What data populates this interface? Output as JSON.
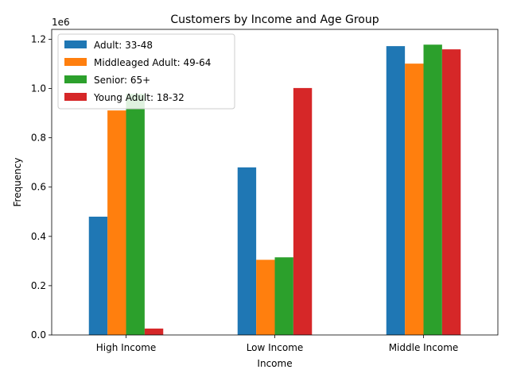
{
  "chart_data": {
    "type": "bar",
    "title": "Customers by Income and Age Group",
    "xlabel": "Income",
    "ylabel": "Frequency",
    "offset_label": "1e6",
    "categories": [
      "High Income",
      "Low Income",
      "Middle Income"
    ],
    "series": [
      {
        "name": "Adult: 33-48",
        "color": "#1f77b4",
        "values": [
          480000,
          680000,
          1172000
        ]
      },
      {
        "name": "Middleaged Adult: 49-64",
        "color": "#ff7f0e",
        "values": [
          911000,
          305000,
          1101000
        ]
      },
      {
        "name": "Senior: 65+",
        "color": "#2ca02c",
        "values": [
          978000,
          315000,
          1178000
        ]
      },
      {
        "name": "Young Adult: 18-32",
        "color": "#d62728",
        "values": [
          26000,
          1002000,
          1159000
        ]
      }
    ],
    "ylim": [
      0,
      1240000
    ],
    "yticks": [
      0,
      200000,
      400000,
      600000,
      800000,
      1000000,
      1200000
    ],
    "ytick_labels": [
      "0.0",
      "0.2",
      "0.4",
      "0.6",
      "0.8",
      "1.0",
      "1.2"
    ],
    "grid": false,
    "legend_position": "top-left"
  }
}
